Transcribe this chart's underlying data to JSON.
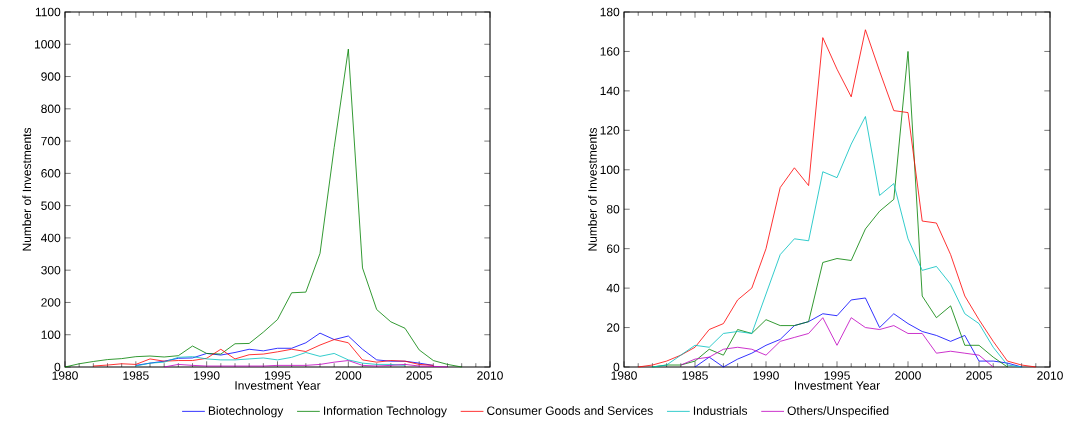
{
  "chart_data": [
    {
      "type": "line",
      "xlabel": "Investment Year",
      "ylabel": "Number of Investments",
      "x": [
        1980,
        1981,
        1982,
        1983,
        1984,
        1985,
        1986,
        1987,
        1988,
        1989,
        1990,
        1991,
        1992,
        1993,
        1994,
        1995,
        1996,
        1997,
        1998,
        1999,
        2000,
        2001,
        2002,
        2003,
        2004,
        2005,
        2006,
        2007,
        2008
      ],
      "xlim": [
        1980,
        2010
      ],
      "xticks": [
        1980,
        1985,
        1990,
        1995,
        2000,
        2005,
        2010
      ],
      "ylim": [
        0,
        1100
      ],
      "yticks": [
        0,
        100,
        200,
        300,
        400,
        500,
        600,
        700,
        800,
        900,
        1000,
        1100
      ],
      "legend": "bottom",
      "series": [
        {
          "name": "Biotechnology",
          "color": "#0000ff",
          "values": [
            null,
            null,
            null,
            null,
            null,
            5,
            12,
            18,
            27,
            28,
            42,
            37,
            45,
            55,
            50,
            58,
            58,
            75,
            105,
            85,
            96,
            55,
            22,
            18,
            18,
            12,
            5,
            null,
            null
          ]
        },
        {
          "name": "Information Technology",
          "color": "#008000",
          "values": [
            0,
            10,
            17,
            23,
            26,
            32,
            34,
            31,
            35,
            65,
            42,
            40,
            72,
            73,
            108,
            147,
            230,
            232,
            352,
            680,
            985,
            307,
            178,
            140,
            120,
            53,
            20,
            8,
            0
          ]
        },
        {
          "name": "Consumer Goods and Services",
          "color": "#ff0000",
          "values": [
            null,
            null,
            3,
            6,
            10,
            8,
            25,
            18,
            20,
            20,
            27,
            55,
            25,
            38,
            40,
            47,
            55,
            48,
            68,
            85,
            75,
            22,
            15,
            20,
            18,
            8,
            5,
            null,
            null
          ]
        },
        {
          "name": "Industrials",
          "color": "#00bfbf",
          "values": [
            null,
            null,
            null,
            null,
            null,
            3,
            12,
            15,
            30,
            32,
            25,
            22,
            22,
            25,
            28,
            22,
            30,
            45,
            33,
            42,
            22,
            12,
            8,
            8,
            5,
            null,
            null,
            null,
            null
          ]
        },
        {
          "name": "Others/Unspecified",
          "color": "#bf00bf",
          "values": [
            null,
            null,
            null,
            null,
            null,
            null,
            null,
            0,
            8,
            5,
            3,
            3,
            null,
            3,
            3,
            5,
            5,
            5,
            8,
            15,
            20,
            5,
            3,
            5,
            8,
            3,
            2,
            0,
            null
          ]
        }
      ]
    },
    {
      "type": "line",
      "xlabel": "Investment Year",
      "ylabel": "Number of Investments",
      "x": [
        1981,
        1982,
        1983,
        1984,
        1985,
        1986,
        1987,
        1988,
        1989,
        1990,
        1991,
        1992,
        1993,
        1994,
        1995,
        1996,
        1997,
        1998,
        1999,
        2000,
        2001,
        2002,
        2003,
        2004,
        2005,
        2006,
        2007,
        2008,
        2009
      ],
      "xlim": [
        1980,
        2010
      ],
      "xticks": [
        1980,
        1985,
        1990,
        1995,
        2000,
        2005,
        2010
      ],
      "ylim": [
        0,
        180
      ],
      "yticks": [
        0,
        20,
        40,
        60,
        80,
        100,
        120,
        140,
        160,
        180
      ],
      "series": [
        {
          "color": "#0000ff",
          "values": [
            null,
            null,
            null,
            null,
            0,
            5,
            0,
            4,
            7,
            11,
            14,
            21,
            23,
            27,
            26,
            34,
            35,
            20,
            27,
            22,
            18,
            16,
            13,
            16,
            3,
            3,
            2,
            0,
            null
          ]
        },
        {
          "color": "#008000",
          "values": [
            null,
            0,
            1,
            1,
            3,
            9,
            6,
            19,
            17,
            24,
            21,
            21,
            23,
            53,
            55,
            54,
            70,
            79,
            85,
            160,
            36,
            25,
            31,
            11,
            11,
            5,
            0,
            null,
            null
          ]
        },
        {
          "color": "#ff0000",
          "values": [
            0,
            1,
            3,
            6,
            10,
            19,
            22,
            34,
            40,
            60,
            91,
            101,
            92,
            167,
            151,
            137,
            171,
            150,
            130,
            129,
            74,
            73,
            57,
            36,
            24,
            13,
            3,
            1,
            0
          ]
        },
        {
          "color": "#00bfbf",
          "values": [
            null,
            0,
            1,
            6,
            11,
            10,
            17,
            18,
            17,
            37,
            57,
            65,
            64,
            99,
            96,
            113,
            127,
            87,
            93,
            65,
            49,
            51,
            42,
            27,
            22,
            10,
            1,
            0,
            null
          ]
        },
        {
          "color": "#bf00bf",
          "values": [
            null,
            null,
            null,
            1,
            4,
            5,
            9,
            10,
            9,
            6,
            13,
            15,
            17,
            25,
            11,
            25,
            20,
            19,
            21,
            17,
            17,
            7,
            8,
            7,
            6,
            0,
            null,
            null,
            null
          ]
        }
      ]
    }
  ]
}
